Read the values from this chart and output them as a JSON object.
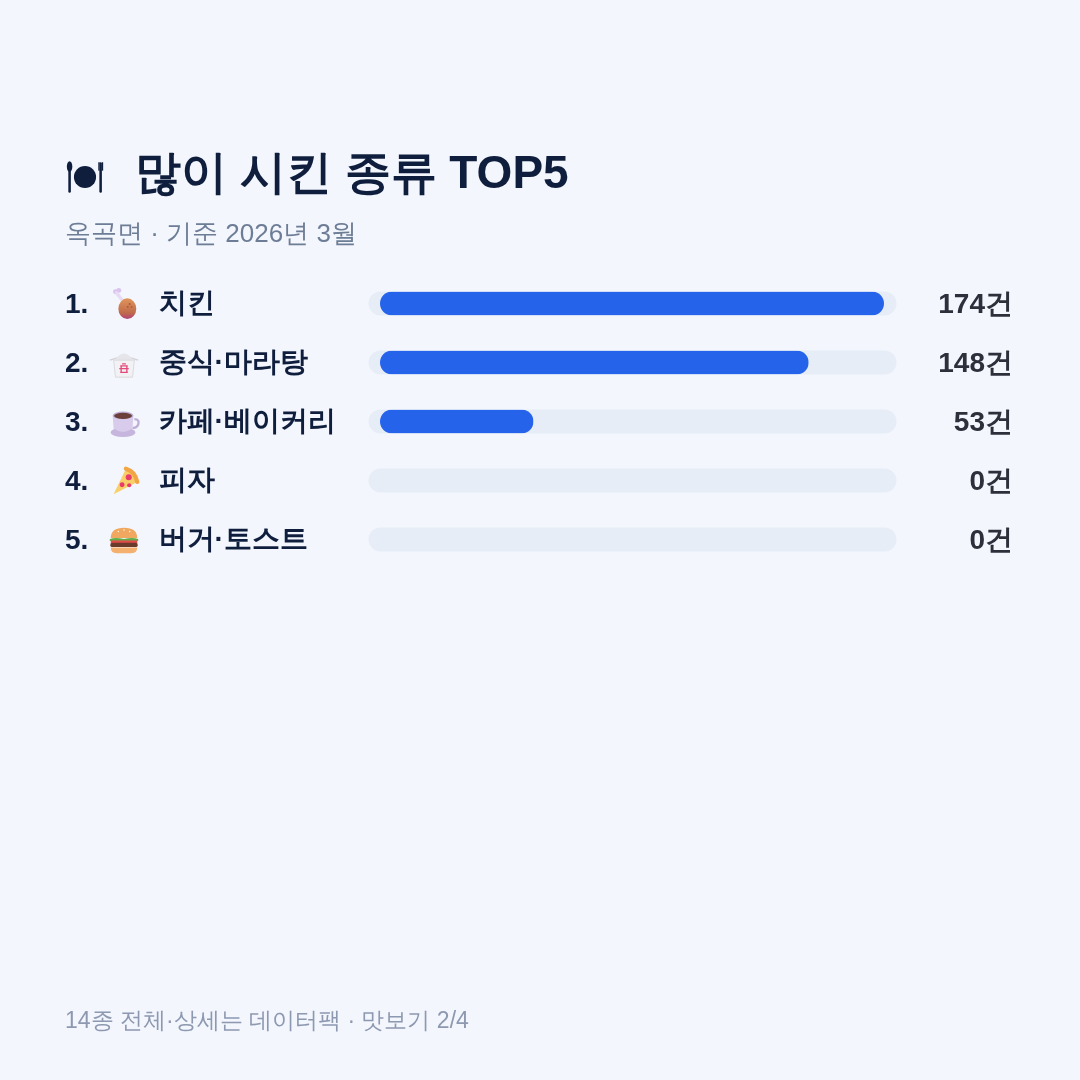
{
  "chart_data": {
    "type": "bar",
    "orientation": "horizontal",
    "title": "많이 시킨 종류 TOP5",
    "subtitle": "옥곡면 · 기준 2026년 3월",
    "categories": [
      "치킨",
      "중식·마라탕",
      "카페·베이커리",
      "피자",
      "버거·토스트"
    ],
    "values": [
      174,
      148,
      53,
      0,
      0
    ],
    "color": "#2563eb",
    "value_labels": [
      "174건",
      "148건",
      "53건",
      "0건",
      "0건"
    ],
    "xlim": [
      0,
      174
    ],
    "tick_labels": "y",
    "annotations": [
      "1.",
      "2.",
      "3.",
      "4.",
      "5.",
      "14종 전체·상세는 데이터팩 · 맛보기 2/4"
    ]
  }
}
